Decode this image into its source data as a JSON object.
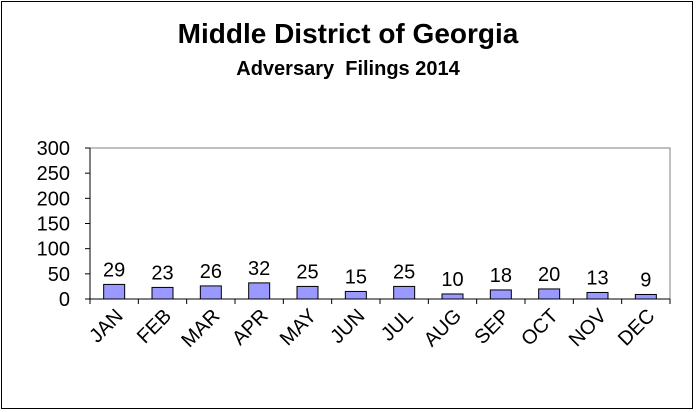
{
  "chart_data": {
    "type": "bar",
    "title": "Middle District of Georgia",
    "subtitle": "Adversary  Filings 2014",
    "categories": [
      "JAN",
      "FEB",
      "MAR",
      "APR",
      "MAY",
      "JUN",
      "JUL",
      "AUG",
      "SEP",
      "OCT",
      "NOV",
      "DEC"
    ],
    "values": [
      29,
      23,
      26,
      32,
      25,
      15,
      25,
      10,
      18,
      20,
      13,
      9
    ],
    "ylim": [
      0,
      300
    ],
    "yticks": [
      0,
      50,
      100,
      150,
      200,
      250,
      300
    ],
    "grid": false,
    "legend": "none",
    "bar_color": "#9999FF",
    "bar_edge_color": "#000000",
    "data_labels": true
  }
}
